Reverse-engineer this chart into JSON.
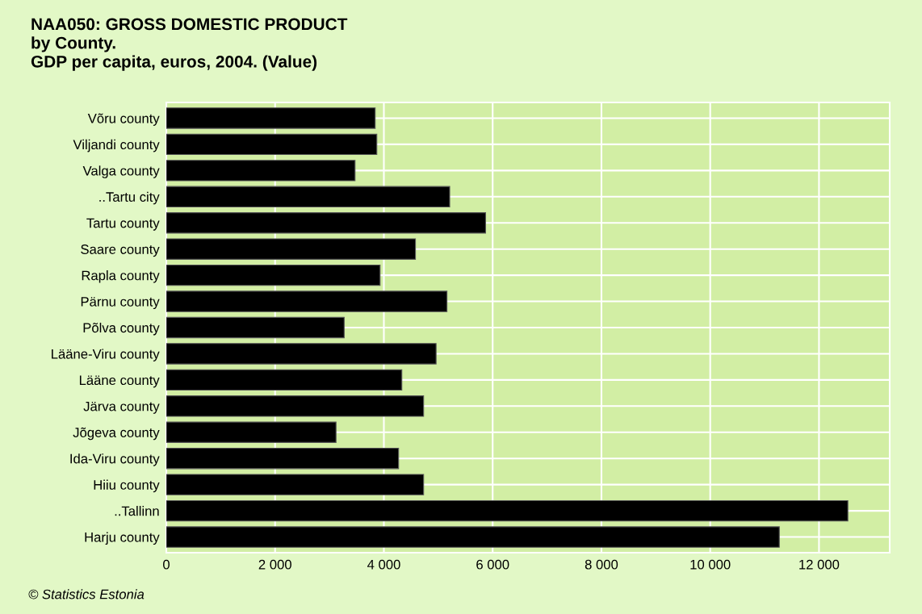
{
  "chart_data": {
    "type": "bar",
    "orientation": "horizontal",
    "title": "NAA050: GROSS DOMESTIC PRODUCT\nby County.\nGDP per capita, euros, 2004. (Value)",
    "categories": [
      "Võru county",
      "Viljandi county",
      "Valga county",
      "..Tartu city",
      "Tartu county",
      "Saare county",
      "Rapla county",
      "Pärnu county",
      "Põlva county",
      "Lääne-Viru county",
      "Lääne county",
      "Järva county",
      "Jõgeva county",
      "Ida-Viru county",
      "Hiiu county",
      "..Tallinn",
      "Harju county"
    ],
    "values": [
      3840,
      3870,
      3470,
      5210,
      5870,
      4580,
      3930,
      5160,
      3270,
      4960,
      4330,
      4730,
      3120,
      4270,
      4730,
      12530,
      11270
    ],
    "color": "#000000",
    "xlim": [
      0,
      13300
    ],
    "xticks": [
      0,
      {
        "value": 2000,
        "label": "2 000"
      },
      {
        "value": 4000,
        "label": "4 000"
      },
      {
        "value": 6000,
        "label": "6 000"
      },
      {
        "value": 8000,
        "label": "8 000"
      },
      {
        "value": 10000,
        "label": "10 000"
      },
      {
        "value": 12000,
        "label": "12 000"
      }
    ],
    "grid": true,
    "annotations": [
      "© Statistics Estonia"
    ]
  }
}
